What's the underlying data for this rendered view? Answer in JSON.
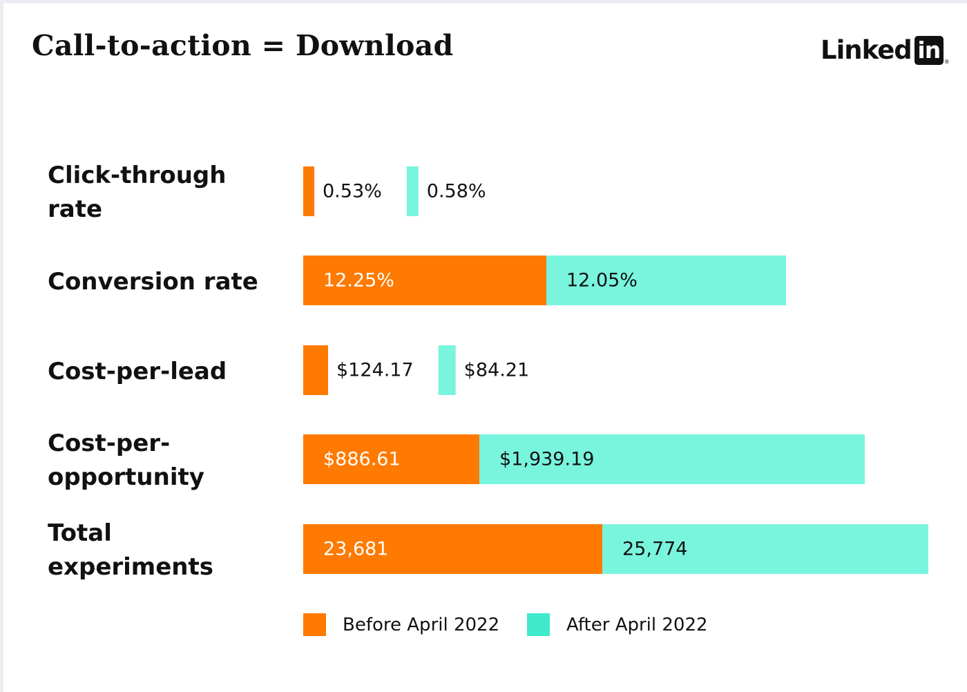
{
  "header": {
    "title": "Call-to-action = Download",
    "logo_text": "Linked",
    "logo_box_text": "in",
    "logo_mark": "®"
  },
  "colors": {
    "before": "#FF7A00",
    "after_bar": "#79F4DD",
    "after_legend": "#3FE9CC",
    "text_dark": "#111111",
    "text_light": "#FFFFFF"
  },
  "legend": {
    "before": "Before April 2022",
    "after": "After April 2022"
  },
  "chart_data": {
    "type": "bar",
    "orientation": "horizontal",
    "stacked_layout": "side-by-side segments per row",
    "title": "Call-to-action = Download",
    "categories": [
      "Click-through rate",
      "Conversion rate",
      "Cost-per-lead",
      "Cost-per-opportunity",
      "Total experiments"
    ],
    "category_label_lines": [
      [
        "Click-through",
        "rate"
      ],
      [
        "Conversion rate"
      ],
      [
        "Cost-per-lead"
      ],
      [
        "Cost-per-",
        "opportunity"
      ],
      [
        "Total",
        "experiments"
      ]
    ],
    "series": [
      {
        "name": "Before April 2022",
        "values": [
          0.53,
          12.25,
          124.17,
          886.61,
          23681
        ],
        "labels": [
          "0.53%",
          "12.25%",
          "$124.17",
          "$886.61",
          "23,681"
        ]
      },
      {
        "name": "After April 2022",
        "values": [
          0.58,
          12.05,
          84.21,
          1939.19,
          25774
        ],
        "labels": [
          "0.58%",
          "12.05%",
          "$84.21",
          "$1,939.19",
          "25,774"
        ]
      }
    ],
    "label_position": [
      "outside",
      "inside",
      "outside",
      "inside",
      "inside"
    ],
    "axes_visible": false,
    "grid": false,
    "legend_position": "bottom"
  }
}
